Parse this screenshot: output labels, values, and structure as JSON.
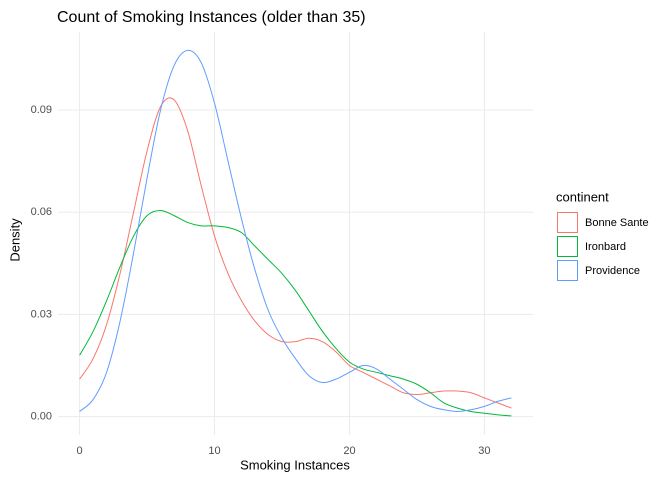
{
  "chart_data": {
    "type": "line",
    "title": "Count of Smoking Instances (older than 35)",
    "x_label": "Smoking Instances",
    "y_label": "Density",
    "legend_title": "continent",
    "legend": "right",
    "grid": true,
    "x": [
      0,
      1,
      2,
      3,
      4,
      5,
      6,
      7,
      8,
      9,
      10,
      11,
      12,
      13,
      14,
      15,
      16,
      17,
      18,
      19,
      20,
      21,
      22,
      23,
      24,
      25,
      26,
      27,
      28,
      29,
      30,
      31,
      32
    ],
    "series": [
      {
        "name": "Bonne Sante",
        "color": "#F8766D",
        "values": [
          0.011,
          0.017,
          0.027,
          0.042,
          0.06,
          0.078,
          0.091,
          0.093,
          0.084,
          0.068,
          0.053,
          0.042,
          0.034,
          0.028,
          0.024,
          0.022,
          0.022,
          0.023,
          0.022,
          0.019,
          0.015,
          0.013,
          0.011,
          0.009,
          0.007,
          0.0065,
          0.007,
          0.0075,
          0.0075,
          0.007,
          0.0055,
          0.004,
          0.0025
        ]
      },
      {
        "name": "Ironbard",
        "color": "#00BA38",
        "values": [
          0.018,
          0.025,
          0.034,
          0.044,
          0.053,
          0.059,
          0.0605,
          0.059,
          0.057,
          0.056,
          0.056,
          0.0555,
          0.054,
          0.05,
          0.046,
          0.042,
          0.037,
          0.031,
          0.025,
          0.02,
          0.016,
          0.014,
          0.013,
          0.012,
          0.011,
          0.0095,
          0.007,
          0.004,
          0.0025,
          0.0015,
          0.001,
          0.0005,
          0.0002
        ]
      },
      {
        "name": "Providence",
        "color": "#619CFF",
        "values": [
          0.0015,
          0.005,
          0.013,
          0.028,
          0.048,
          0.07,
          0.09,
          0.103,
          0.1075,
          0.104,
          0.092,
          0.075,
          0.058,
          0.043,
          0.031,
          0.023,
          0.017,
          0.012,
          0.01,
          0.011,
          0.013,
          0.015,
          0.014,
          0.011,
          0.008,
          0.005,
          0.003,
          0.002,
          0.0015,
          0.002,
          0.003,
          0.0045,
          0.0055
        ]
      }
    ],
    "xlim": [
      -1.6,
      33.6
    ],
    "xticks": [
      0,
      10,
      20,
      30
    ],
    "ylim": [
      -0.0054,
      0.1129
    ],
    "yticks": [
      {
        "value": 0,
        "label": "0.00"
      },
      0.03,
      0.06,
      0.09
    ]
  }
}
